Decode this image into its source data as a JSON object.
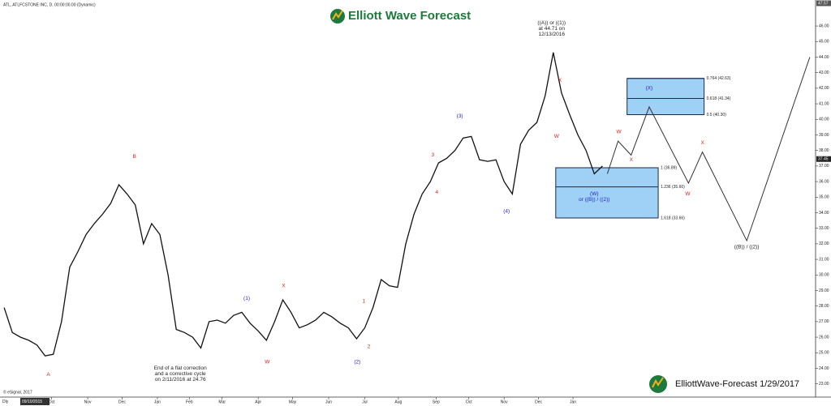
{
  "header": {
    "title": "Elliott Wave Forecast",
    "instrument": "ATL, ATLFCSTONE INC, D, 00:00:00.00 (Dynamic)",
    "footer": "ElliottWave-Forecast 1/29/2017",
    "copyright": "© eSignal, 2017",
    "interval": "Dly",
    "cursor_date": "09/10/2015"
  },
  "chart_data": {
    "type": "line",
    "xlim": [
      -0.5,
      99
    ],
    "xticks": [
      {
        "value": 5.8,
        "label": "Oct"
      },
      {
        "value": 10.2,
        "label": "Nov"
      },
      {
        "value": 14.4,
        "label": "Dec"
      },
      {
        "value": 18.7,
        "label": "Jan"
      },
      {
        "value": 22.6,
        "label": "Feb"
      },
      {
        "value": 26.6,
        "label": "Mar"
      },
      {
        "value": 31,
        "label": "Apr"
      },
      {
        "value": 35.2,
        "label": "May"
      },
      {
        "value": 39.6,
        "label": "Jun"
      },
      {
        "value": 44,
        "label": "Jul"
      },
      {
        "value": 48.1,
        "label": "Aug"
      },
      {
        "value": 52.7,
        "label": "Sep"
      },
      {
        "value": 56.7,
        "label": "Oct"
      },
      {
        "value": 61,
        "label": "Nov"
      },
      {
        "value": 65.2,
        "label": "Dec"
      },
      {
        "value": 69.4,
        "label": "Jan"
      }
    ],
    "ylim": [
      22.15,
      47.67
    ],
    "yticks": [
      {
        "value": 23,
        "label": "23.00"
      },
      {
        "value": 24,
        "label": "24.00"
      },
      {
        "value": 25,
        "label": "25.00"
      },
      {
        "value": 26,
        "label": "26.00"
      },
      {
        "value": 27,
        "label": "27.00"
      },
      {
        "value": 28,
        "label": "28.00"
      },
      {
        "value": 29,
        "label": "29.00"
      },
      {
        "value": 30,
        "label": "30.00"
      },
      {
        "value": 31,
        "label": "31.00"
      },
      {
        "value": 32,
        "label": "32.00"
      },
      {
        "value": 33,
        "label": "33.00"
      },
      {
        "value": 34,
        "label": "34.00"
      },
      {
        "value": 35,
        "label": "35.00"
      },
      {
        "value": 36,
        "label": "36.00"
      },
      {
        "value": 37,
        "label": "37.00"
      },
      {
        "value": 38,
        "label": "38.00"
      },
      {
        "value": 39,
        "label": "39.00"
      },
      {
        "value": 40,
        "label": "40.00"
      },
      {
        "value": 41,
        "label": "41.00"
      },
      {
        "value": 42,
        "label": "42.00"
      },
      {
        "value": 43,
        "label": "43.00"
      },
      {
        "value": 44,
        "label": "44.00"
      },
      {
        "value": 45,
        "label": "45.00"
      },
      {
        "value": 46,
        "label": "46.00"
      }
    ],
    "price_markers": [
      47.57,
      37.45
    ],
    "series": [
      {
        "color": "#111111",
        "x": [
          0,
          1,
          2,
          3,
          4,
          5,
          6,
          7,
          8,
          9,
          10,
          11,
          12,
          13,
          14,
          15,
          16,
          17,
          18,
          19,
          20,
          21,
          22,
          23,
          24,
          25,
          26,
          27,
          28,
          29,
          30,
          31,
          32,
          33,
          34,
          35,
          36,
          37,
          38,
          39,
          40,
          41,
          42,
          43,
          44,
          45,
          46,
          47,
          48,
          49,
          50,
          51,
          52,
          53,
          54,
          55,
          56,
          57,
          58,
          59,
          60,
          61,
          62,
          63,
          64,
          65,
          66,
          67,
          68,
          69,
          70,
          71,
          72,
          73
        ],
        "values": [
          27.9,
          26.3,
          26.0,
          25.8,
          25.5,
          24.8,
          24.9,
          27.0,
          30.5,
          31.5,
          32.6,
          33.3,
          33.9,
          34.6,
          35.8,
          35.2,
          34.5,
          32.0,
          33.3,
          32.6,
          30.0,
          26.5,
          26.3,
          26.0,
          25.3,
          27.0,
          27.1,
          26.9,
          27.4,
          27.6,
          26.9,
          26.4,
          25.8,
          27.0,
          28.4,
          27.6,
          26.6,
          26.8,
          27.1,
          27.6,
          27.3,
          26.9,
          26.6,
          25.9,
          26.6,
          27.9,
          29.7,
          29.3,
          29.2,
          32.0,
          33.9,
          35.2,
          36.0,
          37.2,
          37.5,
          38.0,
          38.8,
          38.9,
          37.4,
          37.3,
          37.4,
          36.0,
          35.2,
          38.4,
          39.3,
          39.8,
          41.5,
          44.3,
          41.7,
          40.3,
          39.0,
          38.0,
          36.5,
          37.0
        ]
      },
      {
        "color": "#333333",
        "x": [
          73.6,
          74.9,
          76.5,
          78.7,
          83.5,
          85.2,
          90.6,
          98.3
        ],
        "values": [
          36.5,
          38.6,
          37.7,
          40.8,
          35.9,
          37.9,
          32.2,
          44.0
        ]
      }
    ],
    "zones": [
      {
        "x": [
          76.0,
          85.4
        ],
        "levels": [
          {
            "value": 42.63,
            "label": "0.764 (42.63)"
          },
          {
            "value": 41.34,
            "label": "0.618 (41.34)"
          },
          {
            "value": 40.3,
            "label": "0.5 (40.30)"
          }
        ]
      },
      {
        "x": [
          67.3,
          79.8
        ],
        "levels": [
          {
            "value": 36.89,
            "label": "1 (36.89)"
          },
          {
            "value": 35.66,
            "label": "1.236 (35.66)"
          },
          {
            "value": 33.66,
            "label": "1.618 (33.66)"
          }
        ]
      }
    ],
    "annotations": [
      {
        "lines": [
          "A"
        ],
        "x": 5.4,
        "y": 23.6,
        "color": "#e0201c"
      },
      {
        "lines": [
          "B"
        ],
        "x": 15.9,
        "y": 37.6,
        "color": "#e0201c"
      },
      {
        "lines": [
          "End of a flat correction",
          "and a corrective cycle",
          "on 2/11/2016 at 24.76"
        ],
        "x": 21.5,
        "y": 24.0,
        "color": "#222222"
      },
      {
        "lines": [
          "W"
        ],
        "x": 32.1,
        "y": 24.4,
        "color": "#e0201c"
      },
      {
        "lines": [
          "(1)"
        ],
        "x": 29.6,
        "y": 28.5,
        "color": "#2222cc"
      },
      {
        "lines": [
          "X"
        ],
        "x": 34.1,
        "y": 29.3,
        "color": "#e0201c"
      },
      {
        "lines": [
          "1"
        ],
        "x": 43.9,
        "y": 28.3,
        "color": "#e0201c"
      },
      {
        "lines": [
          "2"
        ],
        "x": 44.5,
        "y": 25.4,
        "color": "#e0201c"
      },
      {
        "lines": [
          "(2)"
        ],
        "x": 43.1,
        "y": 24.4,
        "color": "#2222cc"
      },
      {
        "lines": [
          "3"
        ],
        "x": 52.3,
        "y": 37.7,
        "color": "#e0201c"
      },
      {
        "lines": [
          "4"
        ],
        "x": 52.8,
        "y": 35.3,
        "color": "#e0201c"
      },
      {
        "lines": [
          "(3)"
        ],
        "x": 55.6,
        "y": 40.2,
        "color": "#2222cc"
      },
      {
        "lines": [
          "(4)"
        ],
        "x": 61.3,
        "y": 34.1,
        "color": "#2222cc"
      },
      {
        "lines": [
          "((A)) or ((1))",
          "at 44.71 on",
          "12/13/2016"
        ],
        "x": 66.8,
        "y": 46.2,
        "color": "#222222"
      },
      {
        "lines": [
          "X"
        ],
        "x": 67.8,
        "y": 42.5,
        "color": "#e0201c"
      },
      {
        "lines": [
          "W"
        ],
        "x": 67.4,
        "y": 38.9,
        "color": "#e0201c"
      },
      {
        "lines": [
          "W"
        ],
        "x": 75.0,
        "y": 39.2,
        "color": "#e0201c"
      },
      {
        "lines": [
          "X"
        ],
        "x": 76.5,
        "y": 37.4,
        "color": "#e0201c"
      },
      {
        "lines": [
          "W"
        ],
        "x": 83.4,
        "y": 35.2,
        "color": "#e0201c"
      },
      {
        "lines": [
          "X"
        ],
        "x": 85.2,
        "y": 38.5,
        "color": "#e0201c"
      },
      {
        "lines": [
          "((B)) / ((2))"
        ],
        "x": 90.6,
        "y": 31.8,
        "color": "#222222"
      },
      {
        "lines": [
          "(X)"
        ],
        "x": 78.7,
        "y": 42.0,
        "color": "#2222cc"
      },
      {
        "lines": [
          "(W)",
          "or ((B)) / ((2))"
        ],
        "x": 72.0,
        "y": 35.2,
        "color": "#2222cc"
      }
    ]
  }
}
